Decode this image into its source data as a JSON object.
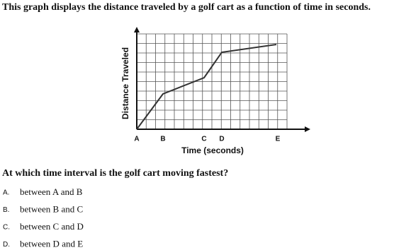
{
  "intro": "This graph displays the distance traveled by a golf cart as a function of time in seconds.",
  "graph": {
    "y_label": "Distance Traveled",
    "x_label": "Time (seconds)",
    "x_points": [
      "A",
      "B",
      "C",
      "D",
      "E"
    ]
  },
  "question": "At which time interval is the golf cart moving fastest?",
  "options": [
    {
      "letter": "A.",
      "text": "between A and B"
    },
    {
      "letter": "B.",
      "text": "between B and C"
    },
    {
      "letter": "C.",
      "text": "between C and D"
    },
    {
      "letter": "D.",
      "text": "between D and E"
    }
  ]
}
